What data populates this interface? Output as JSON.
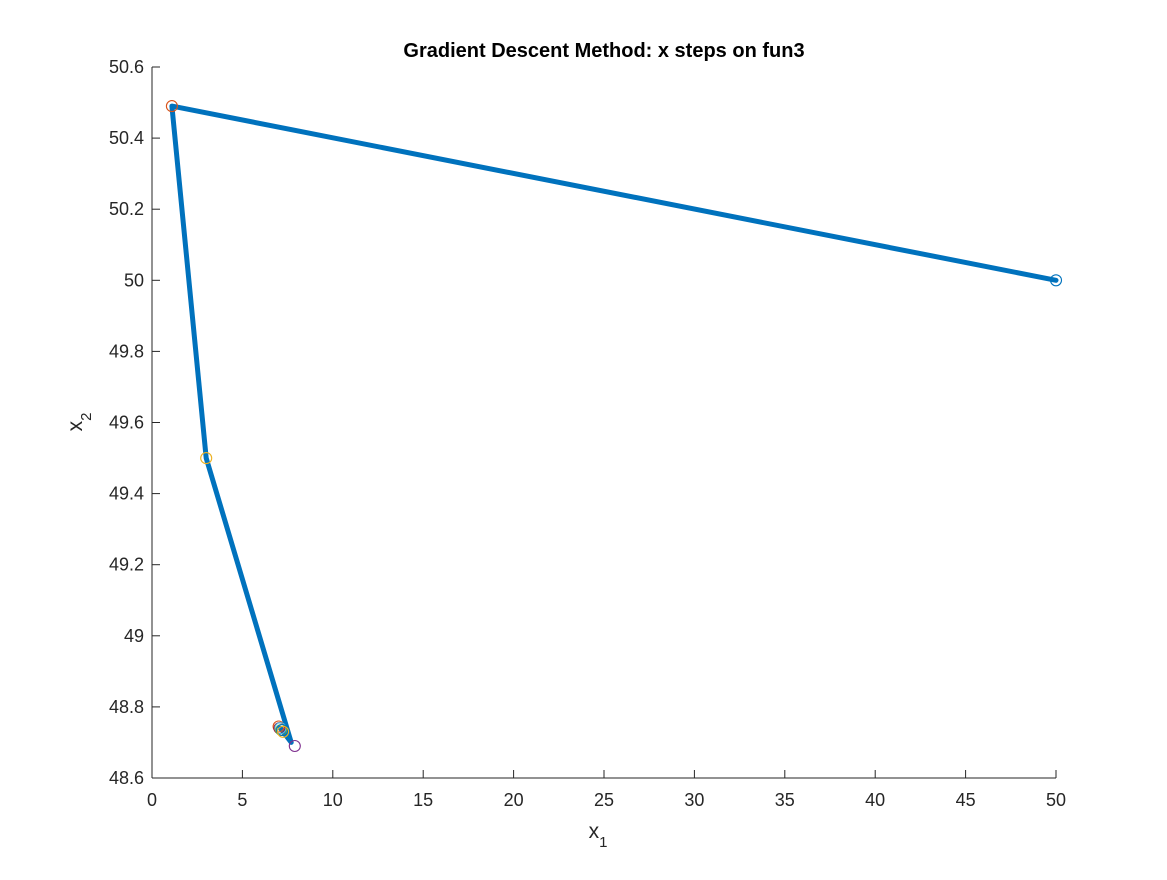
{
  "chart_data": {
    "type": "line",
    "title": "Gradient Descent Method: x steps on fun3",
    "xlabel": "x",
    "xlabel_sub": "1",
    "ylabel": "x",
    "ylabel_sub": "2",
    "xlim": [
      0,
      50
    ],
    "ylim": [
      48.6,
      50.6
    ],
    "xticks": [
      0,
      5,
      10,
      15,
      20,
      25,
      30,
      35,
      40,
      45,
      50
    ],
    "yticks": [
      48.6,
      48.8,
      49,
      49.2,
      49.4,
      49.6,
      49.8,
      50,
      50.2,
      50.4,
      50.6
    ],
    "xtick_labels": [
      "0",
      "5",
      "10",
      "15",
      "20",
      "25",
      "30",
      "35",
      "40",
      "45",
      "50"
    ],
    "ytick_labels": [
      "48.6",
      "48.8",
      "49",
      "49.2",
      "49.4",
      "49.6",
      "49.8",
      "50",
      "50.2",
      "50.4",
      "50.6"
    ],
    "grid": false,
    "series": [
      {
        "color": "#0072BD",
        "line_width": 5,
        "points": [
          {
            "x": 50,
            "y": 50.0
          },
          {
            "x": 1.1,
            "y": 50.49
          },
          {
            "x": 3.0,
            "y": 49.5
          },
          {
            "x": 7.7,
            "y": 48.7
          },
          {
            "x": 7.1,
            "y": 48.74
          },
          {
            "x": 7.4,
            "y": 48.72
          }
        ]
      }
    ],
    "markers": [
      {
        "x": 50,
        "y": 50.0,
        "color": "#0072BD"
      },
      {
        "x": 1.1,
        "y": 50.49,
        "color": "#D95319"
      },
      {
        "x": 3.0,
        "y": 49.5,
        "color": "#EDB120"
      },
      {
        "x": 7.9,
        "y": 48.69,
        "color": "#7E2F8E"
      },
      {
        "x": 7.0,
        "y": 48.745,
        "color": "#D95319"
      },
      {
        "x": 7.05,
        "y": 48.74,
        "color": "#A2142F"
      },
      {
        "x": 7.1,
        "y": 48.74,
        "color": "#4DBEEE"
      },
      {
        "x": 7.15,
        "y": 48.735,
        "color": "#77AC30"
      },
      {
        "x": 7.2,
        "y": 48.735,
        "color": "#0072BD"
      },
      {
        "x": 7.25,
        "y": 48.73,
        "color": "#EDB120"
      }
    ]
  }
}
